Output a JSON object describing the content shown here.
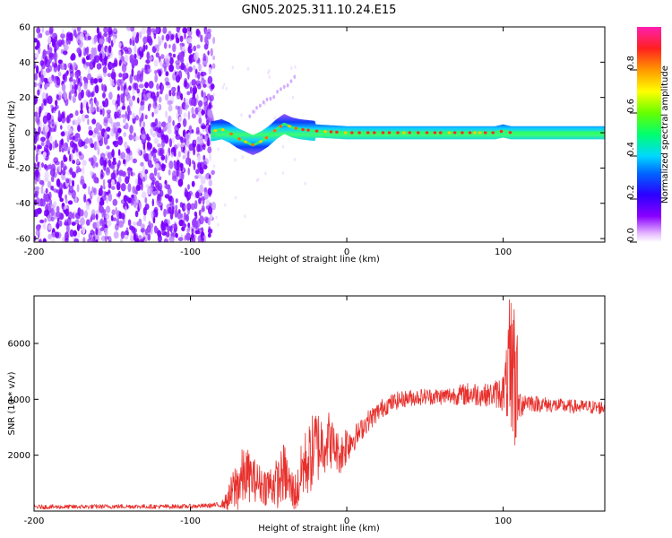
{
  "title": "GN05.2025.311.10.24.E15",
  "colors": {
    "snr_line": "#e8302c",
    "noise": [
      "#7a00ff",
      "#9a3cff",
      "#c08bff",
      "#e3ccff"
    ],
    "axis": "#000000"
  },
  "chart_data": [
    {
      "id": "spectrogram",
      "type": "heatmap",
      "title": "GN05.2025.311.10.24.E15",
      "xlabel": "Height of straight line (km)",
      "ylabel": "Frequency (Hz)",
      "xlim": [
        -200,
        165
      ],
      "ylim": [
        -62,
        60
      ],
      "xticks": [
        -200,
        -100,
        0,
        100
      ],
      "xtick_labels": [
        "-200",
        "-100",
        "0",
        "100"
      ],
      "yticks": [
        60,
        40,
        20,
        0,
        -20,
        -40,
        -60
      ],
      "ytick_labels": [
        "60",
        "40",
        "20",
        "0",
        "-20",
        "-40",
        "-60"
      ],
      "noise_region": {
        "x_from": -200,
        "x_to": -85
      },
      "ridge_center_hz": [
        [
          -85,
          1
        ],
        [
          -80,
          2
        ],
        [
          -75,
          0
        ],
        [
          -70,
          -3
        ],
        [
          -65,
          -5
        ],
        [
          -60,
          -7
        ],
        [
          -55,
          -5
        ],
        [
          -50,
          -2
        ],
        [
          -45,
          2
        ],
        [
          -40,
          5
        ],
        [
          -35,
          3
        ],
        [
          -30,
          2
        ],
        [
          -20,
          1
        ],
        [
          0,
          0
        ],
        [
          20,
          0
        ],
        [
          40,
          0
        ],
        [
          60,
          0
        ],
        [
          80,
          0
        ],
        [
          95,
          0
        ],
        [
          100,
          1
        ],
        [
          105,
          0
        ],
        [
          120,
          0
        ],
        [
          140,
          0
        ],
        [
          165,
          0
        ]
      ],
      "ridge_half_width_hz": 3
    },
    {
      "id": "snr",
      "type": "line",
      "xlabel": "Height of straight line (km)",
      "ylabel": "SNR (10 * v/v)",
      "xlim": [
        -200,
        165
      ],
      "ylim": [
        0,
        7700
      ],
      "xticks": [
        -200,
        -100,
        0,
        100
      ],
      "xtick_labels": [
        "-200",
        "-100",
        "0",
        "100"
      ],
      "yticks": [
        2000,
        4000,
        6000
      ],
      "ytick_labels": [
        "2000",
        "4000",
        "6000"
      ],
      "series": [
        {
          "name": "SNR",
          "x": [
            -200,
            -180,
            -160,
            -140,
            -120,
            -100,
            -90,
            -80,
            -76,
            -72,
            -68,
            -64,
            -60,
            -56,
            -52,
            -48,
            -44,
            -40,
            -36,
            -32,
            -28,
            -24,
            -20,
            -16,
            -12,
            -8,
            -4,
            0,
            4,
            8,
            12,
            16,
            20,
            24,
            28,
            32,
            36,
            40,
            50,
            60,
            70,
            80,
            90,
            95,
            100,
            102,
            104,
            106,
            108,
            110,
            115,
            120,
            140,
            165
          ],
          "y": [
            150,
            150,
            160,
            170,
            160,
            170,
            190,
            230,
            400,
            800,
            1100,
            1300,
            1150,
            1000,
            900,
            950,
            1000,
            1400,
            800,
            650,
            1600,
            1850,
            2300,
            2400,
            2600,
            2300,
            2000,
            2450,
            2600,
            2800,
            3150,
            3350,
            3550,
            3750,
            3850,
            3950,
            4000,
            4050,
            4100,
            4100,
            4150,
            4200,
            4150,
            4200,
            4250,
            4600,
            4800,
            4100,
            4600,
            3800,
            3950,
            3850,
            3750,
            3700
          ],
          "noise_amplitude": [
            80,
            80,
            80,
            80,
            80,
            80,
            80,
            100,
            400,
            900,
            1100,
            1000,
            800,
            700,
            700,
            800,
            900,
            1100,
            800,
            700,
            1200,
            1300,
            1500,
            1200,
            1100,
            800,
            700,
            800,
            500,
            400,
            400,
            380,
            350,
            350,
            320,
            320,
            300,
            300,
            300,
            300,
            350,
            450,
            400,
            500,
            700,
            1200,
            2800,
            1800,
            2600,
            600,
            350,
            300,
            250,
            250
          ]
        }
      ]
    }
  ],
  "colorbar": {
    "label": "Normalized spectral amplitude",
    "ticks": [
      0.0,
      0.2,
      0.4,
      0.6,
      0.8
    ],
    "tick_labels": [
      "0.0",
      "0.2",
      "0.4",
      "0.6",
      "0.8"
    ]
  }
}
